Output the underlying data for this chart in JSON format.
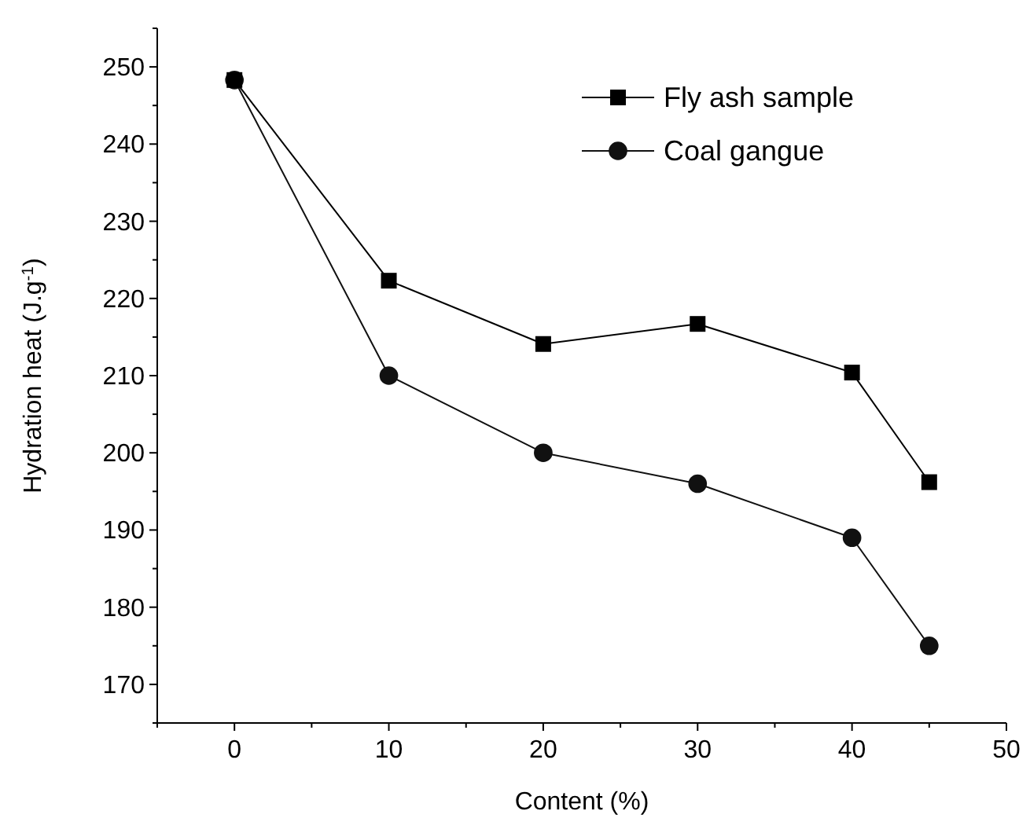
{
  "chart_data": {
    "type": "line",
    "xlabel": "Content (%)",
    "ylabel": "Hydration heat (J.g$^{-1}$)",
    "x": [
      0,
      10,
      20,
      30,
      40,
      45
    ],
    "series": [
      {
        "name": "Fly ash sample",
        "color": "#000000",
        "marker": "square",
        "values": [
          248.3,
          222.3,
          214.1,
          216.7,
          210.4,
          196.2
        ]
      },
      {
        "name": "Coal gangue",
        "color": "#111111",
        "marker": "circle",
        "values": [
          248.3,
          210,
          200,
          196,
          189,
          175
        ]
      }
    ],
    "xlim": [
      -5,
      50
    ],
    "xticks": [
      {
        "value": -5,
        "label": null
      },
      0,
      {
        "value": 5,
        "label": null
      },
      10,
      {
        "value": 15,
        "label": null
      },
      20,
      {
        "value": 25,
        "label": null
      },
      30,
      {
        "value": 35,
        "label": null
      },
      40,
      {
        "value": 45,
        "label": null
      },
      50
    ],
    "ylim": [
      165,
      255
    ],
    "yticks": [
      {
        "value": 165,
        "label": null
      },
      170,
      {
        "value": 175,
        "label": null
      },
      180,
      {
        "value": 185,
        "label": null
      },
      190,
      {
        "value": 195,
        "label": null
      },
      200,
      {
        "value": 205,
        "label": null
      },
      210,
      {
        "value": 215,
        "label": null
      },
      220,
      {
        "value": 225,
        "label": null
      },
      230,
      {
        "value": 235,
        "label": null
      },
      240,
      {
        "value": 245,
        "label": null
      },
      250,
      {
        "value": 255,
        "label": null
      }
    ],
    "legend": "top right",
    "line_style": "solid",
    "grid": false
  }
}
